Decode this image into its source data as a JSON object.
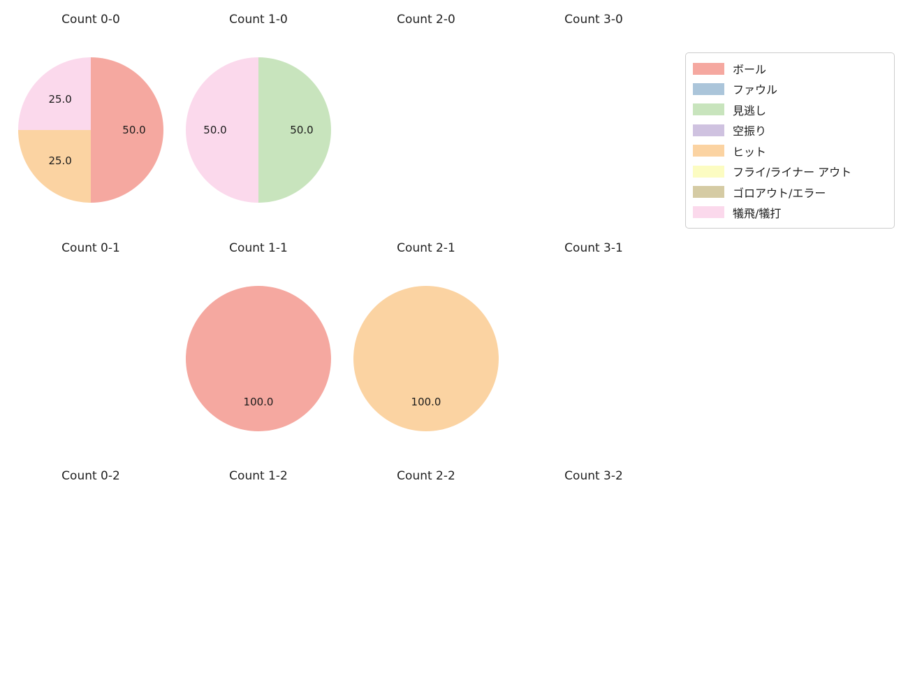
{
  "figure": {
    "background_color": "#ffffff",
    "grid": {
      "columns": 4,
      "rows": 3
    },
    "value_unit": "percent"
  },
  "legend": {
    "position": "top-right",
    "items": [
      {
        "label": "ボール",
        "color": "#f5a8a0"
      },
      {
        "label": "ファウル",
        "color": "#abc5da"
      },
      {
        "label": "見逃し",
        "color": "#c8e4bd"
      },
      {
        "label": "空振り",
        "color": "#cfc2e0"
      },
      {
        "label": "ヒット",
        "color": "#fbd3a2"
      },
      {
        "label": "フライ/ライナー アウト",
        "color": "#fcfcc2"
      },
      {
        "label": "ゴロアウト/エラー",
        "color": "#d5cba4"
      },
      {
        "label": "犠飛/犠打",
        "color": "#fbd9ec"
      }
    ]
  },
  "chart_data": [
    {
      "type": "pie",
      "title": "Count 0-0",
      "slices": [
        {
          "category": "ボール",
          "value": 50.0
        },
        {
          "category": "ヒット",
          "value": 25.0
        },
        {
          "category": "犠飛/犠打",
          "value": 25.0
        }
      ]
    },
    {
      "type": "pie",
      "title": "Count 1-0",
      "slices": [
        {
          "category": "見逃し",
          "value": 50.0
        },
        {
          "category": "犠飛/犠打",
          "value": 50.0
        }
      ]
    },
    {
      "type": "pie",
      "title": "Count 2-0",
      "slices": []
    },
    {
      "type": "pie",
      "title": "Count 3-0",
      "slices": []
    },
    {
      "type": "pie",
      "title": "Count 0-1",
      "slices": []
    },
    {
      "type": "pie",
      "title": "Count 1-1",
      "slices": [
        {
          "category": "ボール",
          "value": 100.0
        }
      ]
    },
    {
      "type": "pie",
      "title": "Count 2-1",
      "slices": [
        {
          "category": "ヒット",
          "value": 100.0
        }
      ]
    },
    {
      "type": "pie",
      "title": "Count 3-1",
      "slices": []
    },
    {
      "type": "pie",
      "title": "Count 0-2",
      "slices": []
    },
    {
      "type": "pie",
      "title": "Count 1-2",
      "slices": []
    },
    {
      "type": "pie",
      "title": "Count 2-2",
      "slices": []
    },
    {
      "type": "pie",
      "title": "Count 3-2",
      "slices": []
    }
  ]
}
